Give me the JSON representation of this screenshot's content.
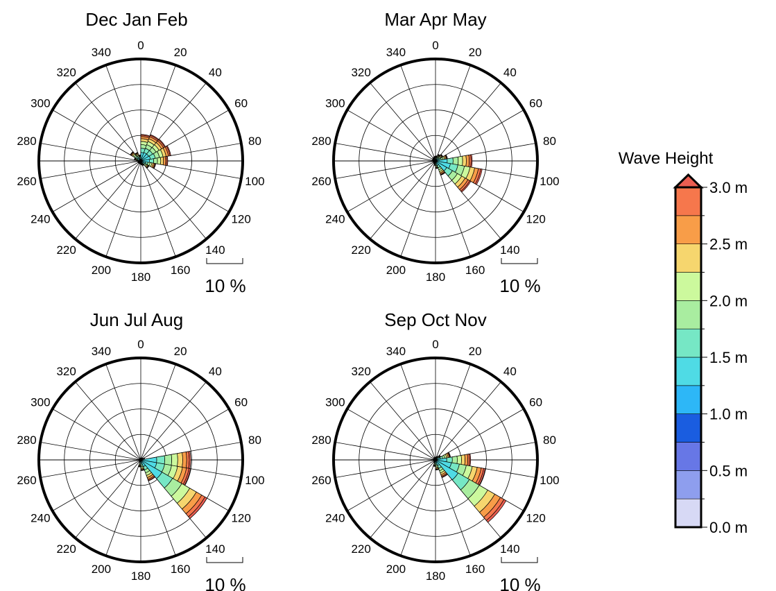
{
  "chart_data": {
    "type": "wind_rose",
    "panels": [
      {
        "title": "Dec Jan Feb",
        "sectors": [
          {
            "dir": 10,
            "total": 5.2
          },
          {
            "dir": 30,
            "total": 5.5
          },
          {
            "dir": 50,
            "total": 5.6
          },
          {
            "dir": 70,
            "total": 6.0
          },
          {
            "dir": 90,
            "total": 5.3
          },
          {
            "dir": 110,
            "total": 3.0
          },
          {
            "dir": 130,
            "total": 1.9
          },
          {
            "dir": 150,
            "total": 1.0
          },
          {
            "dir": 170,
            "total": 0.8
          },
          {
            "dir": 190,
            "total": 0.6
          },
          {
            "dir": 210,
            "total": 0.6
          },
          {
            "dir": 230,
            "total": 0.6
          },
          {
            "dir": 250,
            "total": 0.6
          },
          {
            "dir": 270,
            "total": 0.6
          },
          {
            "dir": 290,
            "total": 1.3
          },
          {
            "dir": 310,
            "total": 2.4
          },
          {
            "dir": 330,
            "total": 1.8
          },
          {
            "dir": 350,
            "total": 1.2
          }
        ],
        "scale_label": "10 %",
        "direction_labels": [
          "0",
          "20",
          "40",
          "60",
          "80",
          "100",
          "120",
          "140",
          "160",
          "180",
          "200",
          "220",
          "240",
          "260",
          "280",
          "300",
          "320",
          "340"
        ]
      },
      {
        "title": "Mar Apr May",
        "sectors": [
          {
            "dir": 10,
            "total": 1.0
          },
          {
            "dir": 30,
            "total": 1.4
          },
          {
            "dir": 50,
            "total": 1.7
          },
          {
            "dir": 70,
            "total": 2.4
          },
          {
            "dir": 90,
            "total": 7.2
          },
          {
            "dir": 110,
            "total": 9.3
          },
          {
            "dir": 130,
            "total": 8.0
          },
          {
            "dir": 150,
            "total": 3.0
          },
          {
            "dir": 170,
            "total": 1.5
          },
          {
            "dir": 190,
            "total": 0.9
          },
          {
            "dir": 210,
            "total": 0.6
          },
          {
            "dir": 230,
            "total": 0.5
          },
          {
            "dir": 250,
            "total": 0.5
          },
          {
            "dir": 270,
            "total": 0.6
          },
          {
            "dir": 290,
            "total": 0.6
          },
          {
            "dir": 310,
            "total": 0.7
          },
          {
            "dir": 330,
            "total": 0.8
          },
          {
            "dir": 350,
            "total": 0.9
          }
        ],
        "scale_label": "10 %",
        "direction_labels": [
          "0",
          "20",
          "40",
          "60",
          "80",
          "100",
          "120",
          "140",
          "160",
          "180",
          "200",
          "220",
          "240",
          "260",
          "280",
          "300",
          "320",
          "340"
        ]
      },
      {
        "title": "Jun Jul Aug",
        "sectors": [
          {
            "dir": 10,
            "total": 0.4
          },
          {
            "dir": 30,
            "total": 0.4
          },
          {
            "dir": 50,
            "total": 0.5
          },
          {
            "dir": 70,
            "total": 0.8
          },
          {
            "dir": 90,
            "total": 9.8
          },
          {
            "dir": 110,
            "total": 9.9
          },
          {
            "dir": 130,
            "total": 15.0
          },
          {
            "dir": 150,
            "total": 4.4
          },
          {
            "dir": 170,
            "total": 2.1
          },
          {
            "dir": 190,
            "total": 1.4
          },
          {
            "dir": 210,
            "total": 0.5
          },
          {
            "dir": 230,
            "total": 0.3
          },
          {
            "dir": 250,
            "total": 0.3
          },
          {
            "dir": 270,
            "total": 0.3
          },
          {
            "dir": 290,
            "total": 0.3
          },
          {
            "dir": 310,
            "total": 0.3
          },
          {
            "dir": 330,
            "total": 0.3
          },
          {
            "dir": 350,
            "total": 0.3
          }
        ],
        "scale_label": "10 %",
        "direction_labels": [
          "0",
          "20",
          "40",
          "60",
          "80",
          "100",
          "120",
          "140",
          "160",
          "180",
          "200",
          "220",
          "240",
          "260",
          "280",
          "300",
          "320",
          "340"
        ]
      },
      {
        "title": "Sep Oct Nov",
        "sectors": [
          {
            "dir": 10,
            "total": 0.6
          },
          {
            "dir": 30,
            "total": 0.8
          },
          {
            "dir": 50,
            "total": 1.2
          },
          {
            "dir": 70,
            "total": 3.0
          },
          {
            "dir": 90,
            "total": 6.9
          },
          {
            "dir": 110,
            "total": 9.9
          },
          {
            "dir": 130,
            "total": 16.0
          },
          {
            "dir": 150,
            "total": 3.7
          },
          {
            "dir": 170,
            "total": 2.0
          },
          {
            "dir": 190,
            "total": 1.3
          },
          {
            "dir": 210,
            "total": 0.6
          },
          {
            "dir": 230,
            "total": 0.4
          },
          {
            "dir": 250,
            "total": 0.4
          },
          {
            "dir": 270,
            "total": 0.4
          },
          {
            "dir": 290,
            "total": 0.4
          },
          {
            "dir": 310,
            "total": 0.5
          },
          {
            "dir": 330,
            "total": 0.5
          },
          {
            "dir": 350,
            "total": 0.5
          }
        ],
        "scale_label": "10 %",
        "direction_labels": [
          "0",
          "20",
          "40",
          "60",
          "80",
          "100",
          "120",
          "140",
          "160",
          "180",
          "200",
          "220",
          "240",
          "260",
          "280",
          "300",
          "320",
          "340"
        ]
      }
    ],
    "radial_max": 20,
    "rings": [
      5,
      10,
      15,
      20
    ],
    "colorbar": {
      "title": "Wave Height",
      "unit": "m",
      "range": [
        0.0,
        3.0
      ],
      "tick_labels": [
        "3.0 m",
        "2.5 m",
        "2.0 m",
        "1.5 m",
        "1.0 m",
        "0.5 m",
        "0.0 m"
      ],
      "colors": [
        "#d7d9f5",
        "#8e9eee",
        "#6777e6",
        "#1a5de0",
        "#2db7f7",
        "#4fdbe5",
        "#76e7c5",
        "#a9eda0",
        "#ccf99d",
        "#f6d66e",
        "#f89d48",
        "#f6774c",
        "#eb5e51"
      ]
    }
  }
}
